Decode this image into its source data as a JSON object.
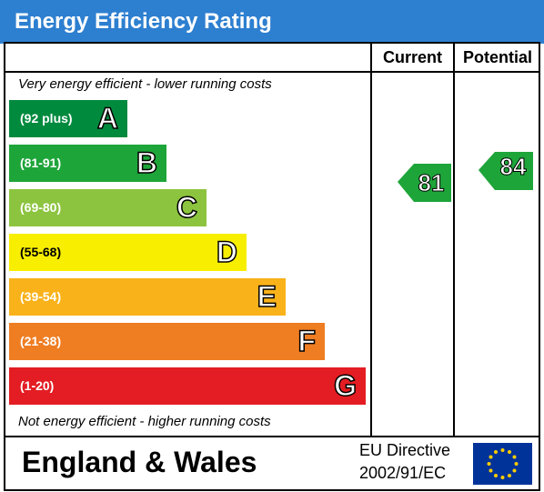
{
  "header": {
    "title": "Energy Efficiency Rating"
  },
  "columns": {
    "current": "Current",
    "potential": "Potential"
  },
  "top_note": "Very energy efficient - lower running costs",
  "bottom_note": "Not energy efficient - higher running costs",
  "bands": [
    {
      "range": "(92 plus)",
      "letter": "A",
      "color": "#008a3e"
    },
    {
      "range": "(81-91)",
      "letter": "B",
      "color": "#1ea53a"
    },
    {
      "range": "(69-80)",
      "letter": "C",
      "color": "#8cc43f"
    },
    {
      "range": "(55-68)",
      "letter": "D",
      "color": "#f7ee00"
    },
    {
      "range": "(39-54)",
      "letter": "E",
      "color": "#f9b21a"
    },
    {
      "range": "(21-38)",
      "letter": "F",
      "color": "#ef7d22"
    },
    {
      "range": "(1-20)",
      "letter": "G",
      "color": "#e31d23"
    }
  ],
  "current": {
    "value": "81",
    "color": "#1ea53a"
  },
  "potential": {
    "value": "84",
    "color": "#1ea53a"
  },
  "footer": {
    "region": "England & Wales",
    "directive_line1": "EU Directive",
    "directive_line2": "2002/91/EC"
  }
}
